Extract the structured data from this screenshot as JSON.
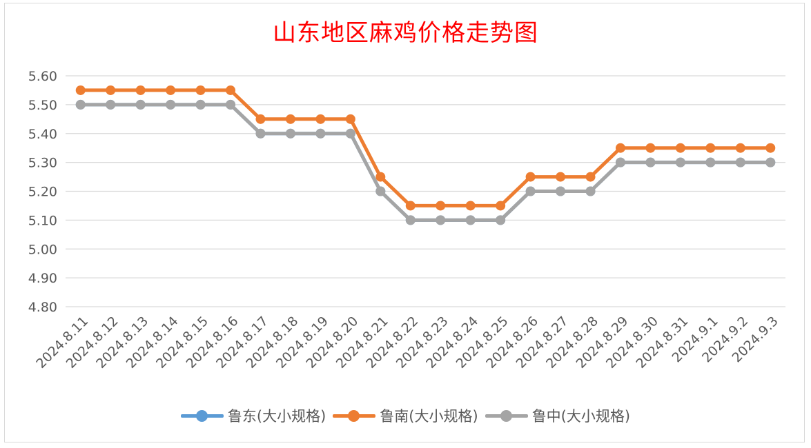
{
  "chart_data": {
    "type": "line",
    "title": "山东地区麻鸡价格走势图",
    "xlabel": "",
    "ylabel": "",
    "ylim": [
      4.8,
      5.6
    ],
    "yticks": [
      "5.60",
      "5.50",
      "5.40",
      "5.30",
      "5.20",
      "5.10",
      "5.00",
      "4.90",
      "4.80"
    ],
    "categories": [
      "2024.8.11",
      "2024.8.12",
      "2024.8.13",
      "2024.8.14",
      "2024.8.15",
      "2024.8.16",
      "2024.8.17",
      "2024.8.18",
      "2024.8.19",
      "2024.8.20",
      "2024.8.21",
      "2024.8.22",
      "2024.8.23",
      "2024.8.24",
      "2024.8.25",
      "2024.8.26",
      "2024.8.27",
      "2024.8.28",
      "2024.8.29",
      "2024.8.30",
      "2024.8.31",
      "2024.9.1",
      "2024.9.2",
      "2024.9.3"
    ],
    "grid": true,
    "legend_position": "bottom",
    "series": [
      {
        "name": "鲁东(大小规格)",
        "color": "#5b9bd5",
        "values": [
          5.5,
          5.5,
          5.5,
          5.5,
          5.5,
          5.5,
          5.4,
          5.4,
          5.4,
          5.4,
          5.2,
          5.1,
          5.1,
          5.1,
          5.1,
          5.2,
          5.2,
          5.2,
          5.3,
          5.3,
          5.3,
          5.3,
          5.3,
          5.3
        ]
      },
      {
        "name": "鲁南(大小规格)",
        "color": "#ed7d31",
        "values": [
          5.55,
          5.55,
          5.55,
          5.55,
          5.55,
          5.55,
          5.45,
          5.45,
          5.45,
          5.45,
          5.25,
          5.15,
          5.15,
          5.15,
          5.15,
          5.25,
          5.25,
          5.25,
          5.35,
          5.35,
          5.35,
          5.35,
          5.35,
          5.35
        ]
      },
      {
        "name": "鲁中(大小规格)",
        "color": "#a5a5a5",
        "values": [
          5.5,
          5.5,
          5.5,
          5.5,
          5.5,
          5.5,
          5.4,
          5.4,
          5.4,
          5.4,
          5.2,
          5.1,
          5.1,
          5.1,
          5.1,
          5.2,
          5.2,
          5.2,
          5.3,
          5.3,
          5.3,
          5.3,
          5.3,
          5.3
        ]
      }
    ]
  }
}
